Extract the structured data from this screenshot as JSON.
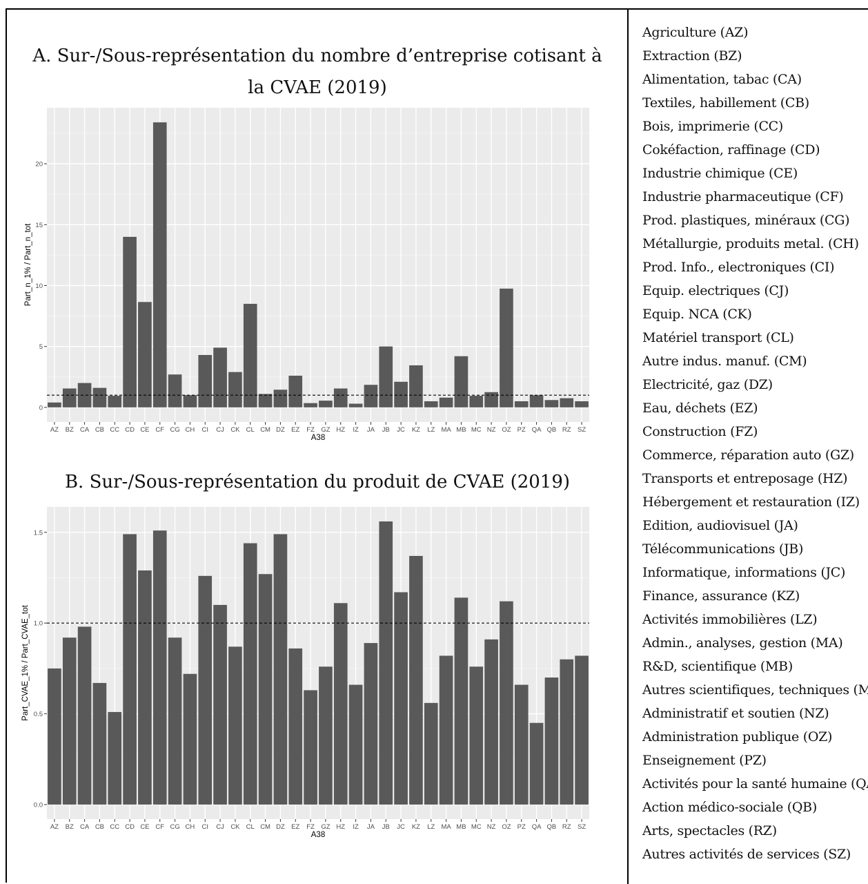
{
  "chart_data": [
    {
      "type": "bar",
      "title": "A. Sur-/Sous-représentation du nombre d’entreprise cotisant à la CVAE (2019)",
      "xlabel": "A38",
      "ylabel": "Part_n_1% / Part_n_tot",
      "ylim": [
        -1.2,
        24.6
      ],
      "yticks": [
        0,
        5,
        10,
        15,
        20
      ],
      "reference_line": 1,
      "grid": true,
      "categories": [
        "AZ",
        "BZ",
        "CA",
        "CB",
        "CC",
        "CD",
        "CE",
        "CF",
        "CG",
        "CH",
        "CI",
        "CJ",
        "CK",
        "CL",
        "CM",
        "DZ",
        "EZ",
        "FZ",
        "GZ",
        "HZ",
        "IZ",
        "JA",
        "JB",
        "JC",
        "KZ",
        "LZ",
        "MA",
        "MB",
        "MC",
        "NZ",
        "OZ",
        "PZ",
        "QA",
        "QB",
        "RZ",
        "SZ"
      ],
      "values": [
        0.4,
        1.55,
        2.0,
        1.6,
        0.95,
        14.0,
        8.65,
        23.4,
        2.7,
        1.0,
        4.3,
        4.9,
        2.9,
        8.5,
        1.1,
        1.45,
        2.6,
        0.35,
        0.55,
        1.55,
        0.3,
        1.85,
        5.0,
        2.1,
        3.45,
        0.5,
        0.8,
        4.2,
        0.95,
        1.25,
        9.75,
        0.5,
        1.0,
        0.6,
        0.75,
        0.5
      ]
    },
    {
      "type": "bar",
      "title": "B. Sur-/Sous-représentation du produit de CVAE (2019)",
      "xlabel": "A38",
      "ylabel": "Part_CVAE_1% / Part_CVAE_tot",
      "ylim": [
        -0.08,
        1.64
      ],
      "yticks": [
        0.0,
        0.5,
        1.0,
        1.5
      ],
      "reference_line": 1,
      "grid": true,
      "categories": [
        "AZ",
        "BZ",
        "CA",
        "CB",
        "CC",
        "CD",
        "CE",
        "CF",
        "CG",
        "CH",
        "CI",
        "CJ",
        "CK",
        "CL",
        "CM",
        "DZ",
        "EZ",
        "FZ",
        "GZ",
        "HZ",
        "IZ",
        "JA",
        "JB",
        "JC",
        "KZ",
        "LZ",
        "MA",
        "MB",
        "MC",
        "NZ",
        "OZ",
        "PZ",
        "QA",
        "QB",
        "RZ",
        "SZ"
      ],
      "values": [
        0.75,
        0.92,
        0.98,
        0.67,
        0.51,
        1.49,
        1.29,
        1.51,
        0.92,
        0.72,
        1.26,
        1.1,
        0.87,
        1.44,
        1.27,
        1.49,
        0.86,
        0.63,
        0.76,
        1.11,
        0.66,
        0.89,
        1.56,
        1.17,
        1.37,
        0.56,
        0.82,
        1.14,
        0.76,
        0.91,
        1.12,
        0.66,
        0.45,
        0.7,
        0.8,
        0.82
      ]
    }
  ],
  "legend": [
    "Agriculture (AZ)",
    "Extraction (BZ)",
    "Alimentation, tabac (CA)",
    "Textiles, habillement (CB)",
    "Bois, imprimerie (CC)",
    "Cokéfaction, raffinage (CD)",
    "Industrie chimique (CE)",
    "Industrie pharmaceutique (CF)",
    "Prod. plastiques, minéraux (CG)",
    "Métallurgie, produits metal. (CH)",
    "Prod. Info., electroniques (CI)",
    "Equip. electriques (CJ)",
    "Equip. NCA (CK)",
    "Matériel transport (CL)",
    "Autre indus. manuf. (CM)",
    "Electricité, gaz (DZ)",
    "Eau, déchets (EZ)",
    "Construction (FZ)",
    "Commerce, réparation auto (GZ)",
    "Transports et entreposage (HZ)",
    "Hébergement et restauration (IZ)",
    "Edition, audiovisuel (JA)",
    "Télécommunications (JB)",
    "Informatique, informations (JC)",
    "Finance, assurance (KZ)",
    "Activités immobilières (LZ)",
    "Admin., analyses, gestion (MA)",
    "R&D, scientifique (MB)",
    "Autres scientifiques, techniques (MC)",
    "Administratif et soutien (NZ)",
    "Administration publique (OZ)",
    "Enseignement (PZ)",
    "Activités pour la santé humaine (QA)",
    "Action médico-sociale (QB)",
    "Arts, spectacles (RZ)",
    "Autres activités de services (SZ)"
  ]
}
